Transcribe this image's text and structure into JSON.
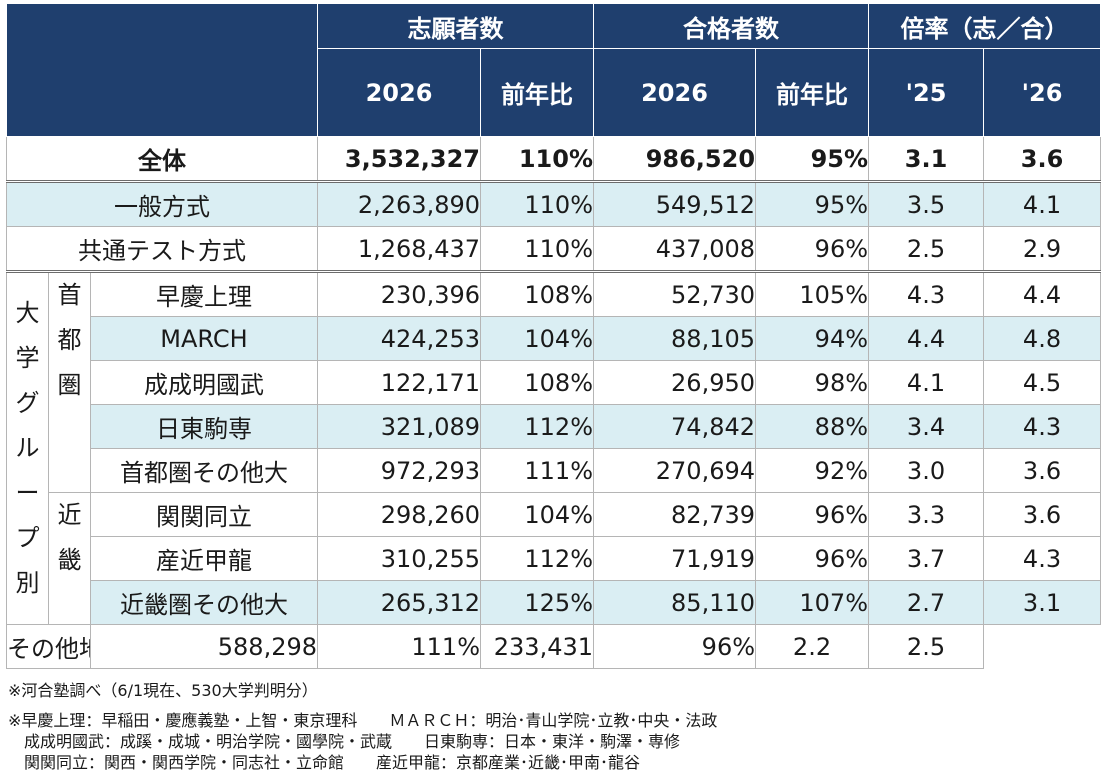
{
  "header": {
    "applicants": "志願者数",
    "passers": "合格者数",
    "ratio": "倍率（志／合）",
    "year": "2026",
    "yoy": "前年比",
    "ratio_prev": "'25",
    "ratio_curr": "'26"
  },
  "group_labels": {
    "university_group": [
      "大",
      "学",
      "グ",
      "ル",
      "ー",
      "プ",
      "別"
    ],
    "shutoken": [
      "首",
      "都",
      "圏"
    ],
    "kinki": [
      "近",
      "畿"
    ]
  },
  "total": {
    "label": "全体",
    "applicants": "3,532,327",
    "app_yoy": "110%",
    "passers": "986,520",
    "pass_yoy": "95%",
    "r25": "3.1",
    "r26": "3.6"
  },
  "methods": [
    {
      "label": "一般方式",
      "applicants": "2,263,890",
      "app_yoy": "110%",
      "passers": "549,512",
      "pass_yoy": "95%",
      "r25": "3.5",
      "r26": "4.1"
    },
    {
      "label": "共通テスト方式",
      "applicants": "1,268,437",
      "app_yoy": "110%",
      "passers": "437,008",
      "pass_yoy": "96%",
      "r25": "2.5",
      "r26": "2.9"
    }
  ],
  "shutoken_rows": [
    {
      "label": "早慶上理",
      "applicants": "230,396",
      "app_yoy": "108%",
      "passers": "52,730",
      "pass_yoy": "105%",
      "r25": "4.3",
      "r26": "4.4"
    },
    {
      "label": "MARCH",
      "applicants": "424,253",
      "app_yoy": "104%",
      "passers": "88,105",
      "pass_yoy": "94%",
      "r25": "4.4",
      "r26": "4.8"
    },
    {
      "label": "成成明國武",
      "applicants": "122,171",
      "app_yoy": "108%",
      "passers": "26,950",
      "pass_yoy": "98%",
      "r25": "4.1",
      "r26": "4.5"
    },
    {
      "label": "日東駒専",
      "applicants": "321,089",
      "app_yoy": "112%",
      "passers": "74,842",
      "pass_yoy": "88%",
      "r25": "3.4",
      "r26": "4.3"
    },
    {
      "label": "首都圏その他大",
      "applicants": "972,293",
      "app_yoy": "111%",
      "passers": "270,694",
      "pass_yoy": "92%",
      "r25": "3.0",
      "r26": "3.6"
    }
  ],
  "kinki_rows": [
    {
      "label": "関関同立",
      "applicants": "298,260",
      "app_yoy": "104%",
      "passers": "82,739",
      "pass_yoy": "96%",
      "r25": "3.3",
      "r26": "3.6"
    },
    {
      "label": "産近甲龍",
      "applicants": "310,255",
      "app_yoy": "112%",
      "passers": "71,919",
      "pass_yoy": "96%",
      "r25": "3.7",
      "r26": "4.3"
    },
    {
      "label": "近畿圏その他大",
      "applicants": "265,312",
      "app_yoy": "125%",
      "passers": "85,110",
      "pass_yoy": "107%",
      "r25": "2.7",
      "r26": "3.1"
    }
  ],
  "other_region": {
    "label": "その他地区の大学",
    "applicants": "588,298",
    "app_yoy": "111%",
    "passers": "233,431",
    "pass_yoy": "96%",
    "r25": "2.2",
    "r26": "2.5"
  },
  "notes": {
    "source": "※河合塾調べ（6/1現在、530大学判明分）",
    "def1": "※早慶上理：早稲田・慶應義塾・上智・東京理科　　ＭＡＲＣＨ：明治･青山学院･立教･中央・法政",
    "def2": "　成成明國武：成蹊・成城・明治学院・國學院・武蔵　　日東駒専：日本・東洋・駒澤・専修",
    "def3": "　関関同立：関西・関西学院・同志社・立命館　　産近甲龍：京都産業･近畿･甲南･龍谷"
  }
}
